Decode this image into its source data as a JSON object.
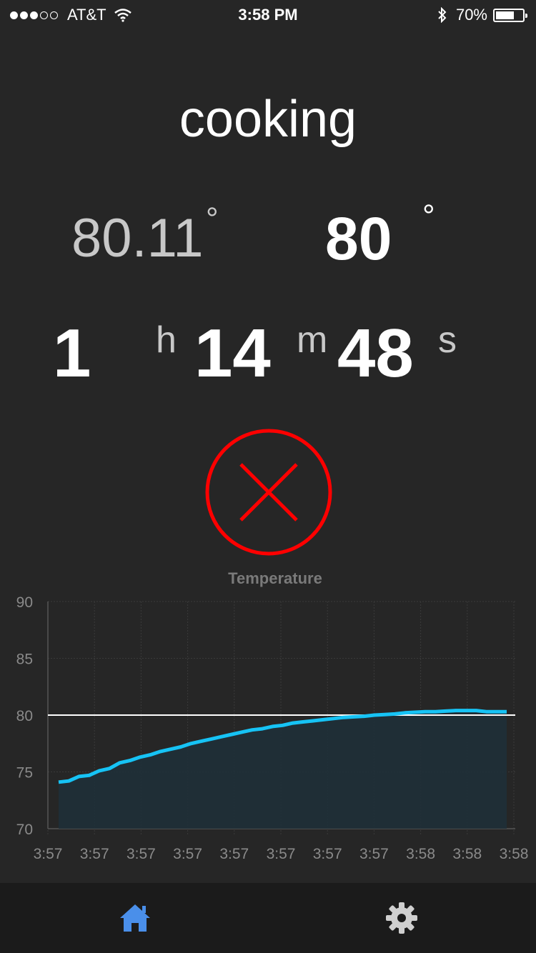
{
  "status_bar": {
    "carrier": "AT&T",
    "time": "3:58 PM",
    "battery": "70%",
    "battery_level": 0.7,
    "signal_bars": 3,
    "signal_total": 5
  },
  "state_label": "cooking",
  "temperature": {
    "current": "80.11",
    "target": "80",
    "degree_symbol": "°"
  },
  "timer": {
    "hours": "1",
    "hours_unit": "h",
    "minutes": "14",
    "minutes_unit": "m",
    "seconds": "48",
    "seconds_unit": "s"
  },
  "cancel_button": {
    "icon": "close-icon",
    "color": "#ff0000"
  },
  "colors": {
    "background": "#262626",
    "series": "#16c3f5",
    "target_line": "#ffffff",
    "cancel": "#ff0000",
    "active_tab": "#4a8fea",
    "inactive_tab": "#cfcfcf"
  },
  "chart_data": {
    "type": "area",
    "title": "Temperature",
    "x_tick_labels": [
      "3:57",
      "3:57",
      "3:57",
      "3:57",
      "3:57",
      "3:57",
      "3:57",
      "3:57",
      "3:58",
      "3:58",
      "3:58"
    ],
    "ylim": [
      70,
      90
    ],
    "y_ticks": [
      "90",
      "85",
      "80",
      "75",
      "70"
    ],
    "grid": true,
    "target_value": 80,
    "series": [
      {
        "values": [
          74.1,
          74.2,
          74.6,
          74.7,
          75.1,
          75.3,
          75.8,
          76.0,
          76.3,
          76.5,
          76.8,
          77.0,
          77.2,
          77.5,
          77.7,
          77.9,
          78.1,
          78.3,
          78.5,
          78.7,
          78.8,
          79.0,
          79.1,
          79.3,
          79.4,
          79.5,
          79.6,
          79.7,
          79.8,
          79.85,
          79.9,
          80.0,
          80.05,
          80.1,
          80.2,
          80.25,
          80.3,
          80.3,
          80.35,
          80.4,
          80.4,
          80.4,
          80.3,
          80.3,
          80.3
        ]
      }
    ]
  },
  "tab_bar": {
    "items": [
      {
        "icon": "home-icon",
        "active": true
      },
      {
        "icon": "gear-icon",
        "active": false
      }
    ]
  }
}
